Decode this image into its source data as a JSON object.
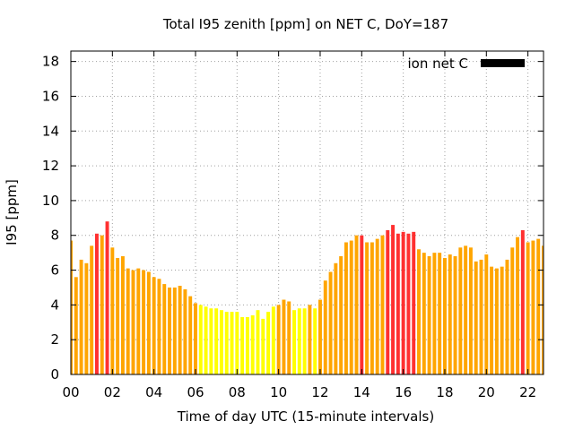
{
  "chart_data": {
    "type": "bar",
    "title": "Total I95 zenith [ppm] on NET C, DoY=187",
    "xlabel": "Time of day UTC (15-minute intervals)",
    "ylabel": "I95 [ppm]",
    "xlim": [
      0,
      22.75
    ],
    "ylim": [
      0,
      18.6
    ],
    "yticks": [
      0,
      2,
      4,
      6,
      8,
      10,
      12,
      14,
      16,
      18
    ],
    "xticks": [
      0,
      2,
      4,
      6,
      8,
      10,
      12,
      14,
      16,
      18,
      20,
      22
    ],
    "xtick_labels": [
      "00",
      "02",
      "04",
      "06",
      "08",
      "10",
      "12",
      "14",
      "16",
      "18",
      "20",
      "22"
    ],
    "grid": true,
    "legend": {
      "label": "ion net C",
      "color": "#000000",
      "position": "top-right"
    },
    "colors": {
      "yellow": "#ffff00",
      "orange": "#ffa500",
      "red": "#ff3030",
      "frame": "#000000",
      "grid": "#a0a0a0"
    },
    "bar_width_hours": 0.17,
    "values": [
      7.7,
      5.6,
      6.6,
      6.4,
      7.4,
      8.1,
      8.0,
      8.8,
      7.3,
      6.7,
      6.8,
      6.1,
      6.0,
      6.1,
      6.0,
      5.9,
      5.6,
      5.5,
      5.2,
      5.0,
      5.0,
      5.1,
      4.9,
      4.5,
      4.1,
      4.0,
      3.9,
      3.8,
      3.8,
      3.7,
      3.6,
      3.6,
      3.6,
      3.3,
      3.3,
      3.4,
      3.7,
      3.2,
      3.6,
      3.9,
      4.0,
      4.3,
      4.2,
      3.7,
      3.8,
      3.8,
      4.0,
      3.8,
      4.3,
      5.4,
      5.9,
      6.4,
      6.8,
      7.6,
      7.7,
      8.0,
      8.0,
      7.6,
      7.6,
      7.8,
      8.0,
      8.3,
      8.6,
      8.1,
      8.2,
      8.1,
      8.2,
      7.2,
      7.0,
      6.8,
      7.0,
      7.0,
      6.7,
      6.9,
      6.8,
      7.3,
      7.4,
      7.3,
      6.5,
      6.6,
      6.9,
      6.2,
      6.1,
      6.2,
      6.6,
      7.3,
      7.9,
      8.3,
      7.6,
      7.7,
      7.8,
      7.4
    ],
    "bar_colors": [
      "orange",
      "orange",
      "orange",
      "orange",
      "orange",
      "red",
      "orange",
      "red",
      "orange",
      "orange",
      "orange",
      "orange",
      "orange",
      "orange",
      "orange",
      "orange",
      "orange",
      "orange",
      "orange",
      "orange",
      "orange",
      "orange",
      "orange",
      "orange",
      "orange",
      "yellow",
      "yellow",
      "yellow",
      "yellow",
      "yellow",
      "yellow",
      "yellow",
      "yellow",
      "yellow",
      "yellow",
      "yellow",
      "yellow",
      "yellow",
      "yellow",
      "yellow",
      "orange",
      "orange",
      "orange",
      "yellow",
      "yellow",
      "yellow",
      "orange",
      "yellow",
      "orange",
      "orange",
      "orange",
      "orange",
      "orange",
      "orange",
      "orange",
      "orange",
      "red",
      "orange",
      "orange",
      "orange",
      "orange",
      "red",
      "red",
      "red",
      "red",
      "red",
      "red",
      "orange",
      "orange",
      "orange",
      "orange",
      "orange",
      "orange",
      "orange",
      "orange",
      "orange",
      "orange",
      "orange",
      "orange",
      "orange",
      "orange",
      "orange",
      "orange",
      "orange",
      "orange",
      "orange",
      "orange",
      "red",
      "orange",
      "orange",
      "orange",
      "orange"
    ]
  }
}
